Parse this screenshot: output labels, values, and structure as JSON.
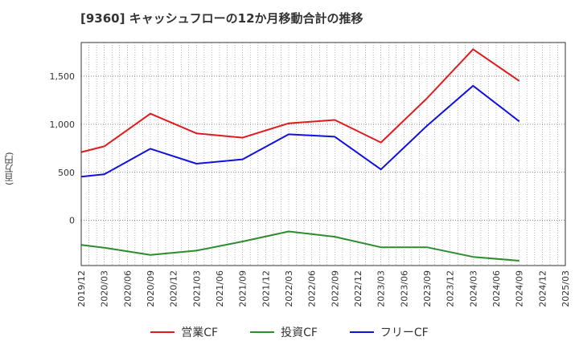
{
  "chart_data": {
    "type": "line",
    "title": "[9360]  キャッシュフローの12か月移動合計の推移",
    "ylabel": "(百万円)",
    "xlabel": "",
    "ylim": [
      -470,
      1850
    ],
    "y_ticks": [
      0,
      500,
      1000,
      1500
    ],
    "y_tick_labels": [
      "0",
      "500",
      "1,000",
      "1,500"
    ],
    "categories": [
      "2019/12",
      "2020/03",
      "2020/06",
      "2020/09",
      "2020/12",
      "2021/03",
      "2021/06",
      "2021/09",
      "2021/12",
      "2022/03",
      "2022/06",
      "2022/09",
      "2022/12",
      "2023/03",
      "2023/06",
      "2023/09",
      "2023/12",
      "2024/03",
      "2024/06",
      "2024/09",
      "2024/12",
      "2025/03"
    ],
    "grid": true,
    "legend_position": "bottom",
    "series": [
      {
        "name": "営業CF",
        "color": "#e31a1c",
        "points": [
          [
            0,
            710
          ],
          [
            1,
            770
          ],
          [
            3,
            1110
          ],
          [
            5,
            905
          ],
          [
            7,
            860
          ],
          [
            9,
            1010
          ],
          [
            11,
            1045
          ],
          [
            13,
            810
          ],
          [
            15,
            1270
          ],
          [
            17,
            1780
          ],
          [
            19,
            1450
          ]
        ]
      },
      {
        "name": "投資CF",
        "color": "#2e8b2e",
        "points": [
          [
            0,
            -255
          ],
          [
            1,
            -285
          ],
          [
            3,
            -360
          ],
          [
            5,
            -315
          ],
          [
            7,
            -220
          ],
          [
            9,
            -115
          ],
          [
            11,
            -170
          ],
          [
            13,
            -280
          ],
          [
            15,
            -280
          ],
          [
            17,
            -380
          ],
          [
            19,
            -420
          ]
        ]
      },
      {
        "name": "フリーCF",
        "color": "#1010e0",
        "points": [
          [
            0,
            455
          ],
          [
            1,
            480
          ],
          [
            3,
            745
          ],
          [
            5,
            590
          ],
          [
            7,
            635
          ],
          [
            9,
            895
          ],
          [
            11,
            870
          ],
          [
            13,
            530
          ],
          [
            15,
            985
          ],
          [
            17,
            1400
          ],
          [
            19,
            1030
          ]
        ]
      }
    ]
  }
}
